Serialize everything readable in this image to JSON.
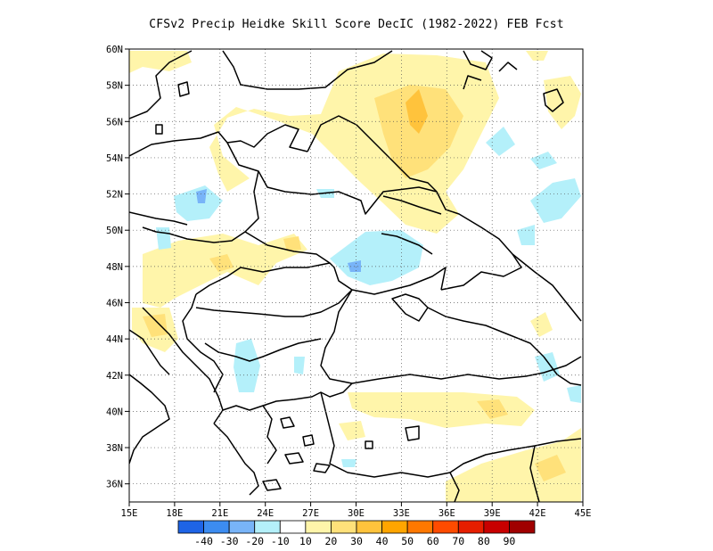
{
  "title": "CFSv2 Precip Heidke Skill Score DecIC (1982-2022) FEB Fcst",
  "map": {
    "lon_range": [
      15,
      45
    ],
    "lat_range": [
      35,
      60
    ],
    "x_ticks": [
      "15E",
      "18E",
      "21E",
      "24E",
      "27E",
      "30E",
      "33E",
      "36E",
      "39E",
      "42E",
      "45E"
    ],
    "y_ticks": [
      "36N",
      "38N",
      "40N",
      "42N",
      "44N",
      "46N",
      "48N",
      "50N",
      "52N",
      "54N",
      "56N",
      "58N",
      "60N"
    ],
    "grid": "dotted",
    "background": "#ffffff"
  },
  "colorbar": {
    "colors": [
      "#1e64e6",
      "#3c8cf0",
      "#78b4f8",
      "#b4f0fa",
      "#ffffff",
      "#fff5aa",
      "#ffe17a",
      "#ffc33c",
      "#ffa500",
      "#ff7800",
      "#ff4b00",
      "#e61e00",
      "#c80000",
      "#a00000"
    ],
    "labels": [
      "-40",
      "-30",
      "-20",
      "-10",
      "10",
      "20",
      "30",
      "40",
      "50",
      "60",
      "70",
      "80",
      "90"
    ]
  }
}
